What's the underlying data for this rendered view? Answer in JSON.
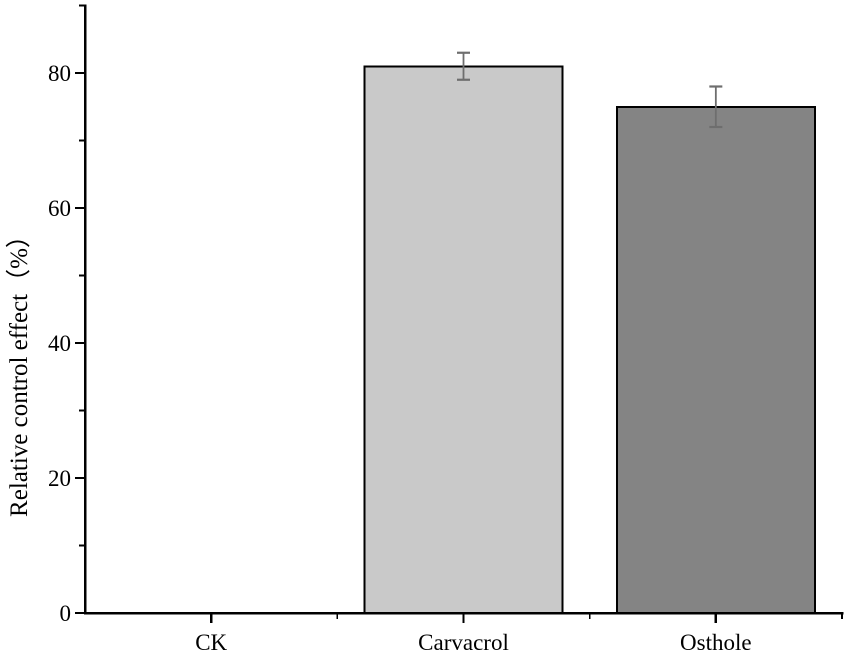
{
  "figure": {
    "background": "#ffffff",
    "axis_color": "#000000"
  },
  "chart_data": {
    "type": "bar",
    "title": "",
    "xlabel": "",
    "ylabel": "Relative control effect（%）",
    "categories": [
      "CK",
      "Carvacrol",
      "Osthole"
    ],
    "values": [
      0,
      81,
      75
    ],
    "errors": [
      0,
      2,
      3
    ],
    "bar_colors": [
      "none",
      "#c9c9c9",
      "#848484"
    ],
    "bar_edge_color": "#000000",
    "error_bar_color": "#6e6e6e",
    "ylim": [
      0,
      90
    ],
    "ytick_major": [
      0,
      20,
      40,
      60,
      80
    ],
    "ytick_minor": [
      10,
      30,
      50,
      70,
      90
    ],
    "grid": false,
    "legend": null
  }
}
